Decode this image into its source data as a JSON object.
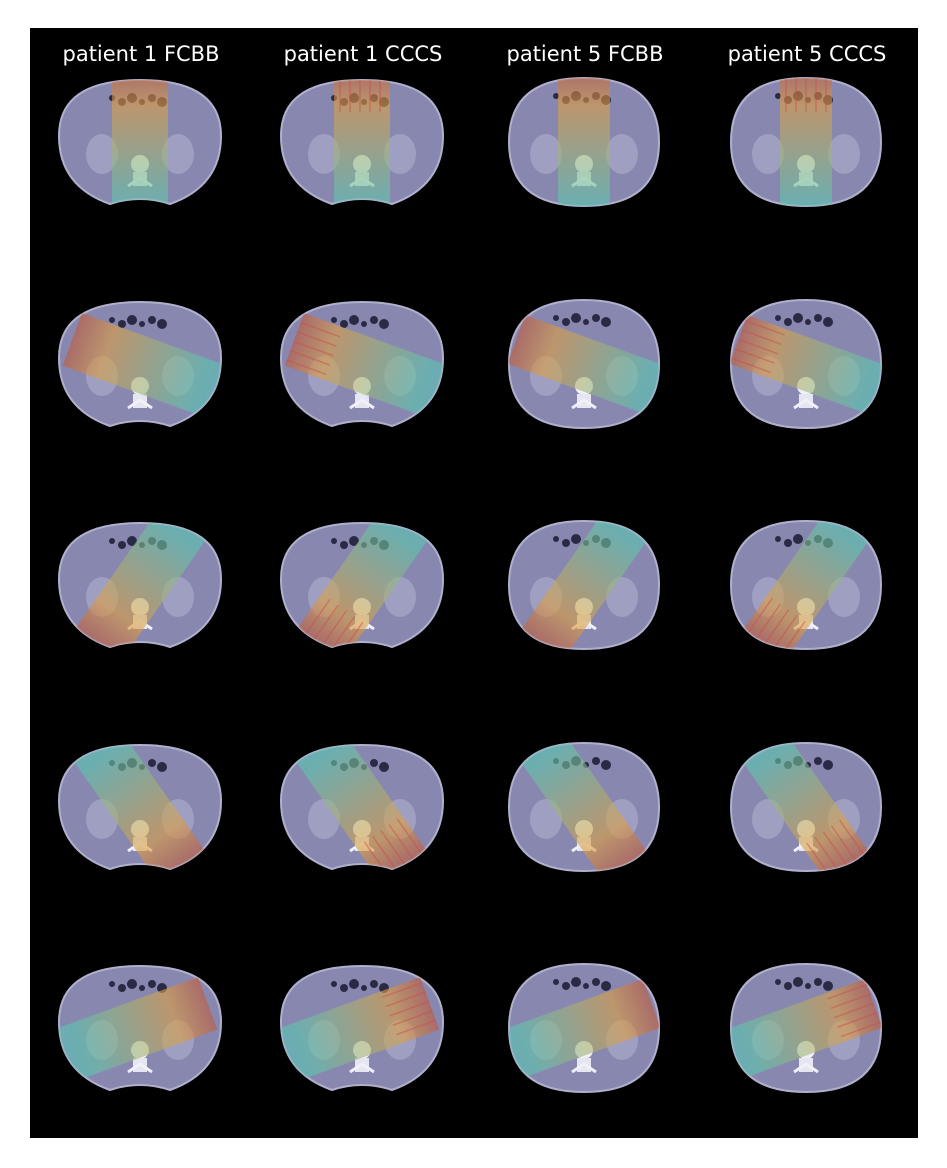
{
  "figure": {
    "background": "#000000",
    "columns": [
      {
        "title": "patient 1 FCBB",
        "patient": 1,
        "method": "FCBB"
      },
      {
        "title": "patient 1 CCCS",
        "patient": 1,
        "method": "CCCS"
      },
      {
        "title": "patient 5 FCBB",
        "patient": 5,
        "method": "FCBB"
      },
      {
        "title": "patient 5 CCCS",
        "patient": 5,
        "method": "CCCS"
      }
    ],
    "rows": [
      {
        "beam": "anterior",
        "beam_angle_deg": 0
      },
      {
        "beam": "left-anterior-oblique",
        "beam_angle_deg": -70
      },
      {
        "beam": "left-posterior-oblique",
        "beam_angle_deg": 215
      },
      {
        "beam": "right-posterior-oblique",
        "beam_angle_deg": 145
      },
      {
        "beam": "right-anterior-oblique",
        "beam_angle_deg": 70
      }
    ],
    "colors": {
      "body": "#8787b0",
      "beam_low": "#5b8fd6",
      "beam_mid": "#59c9b0",
      "beam_high": "#e0a040",
      "beam_peak": "#c05a3a"
    }
  }
}
